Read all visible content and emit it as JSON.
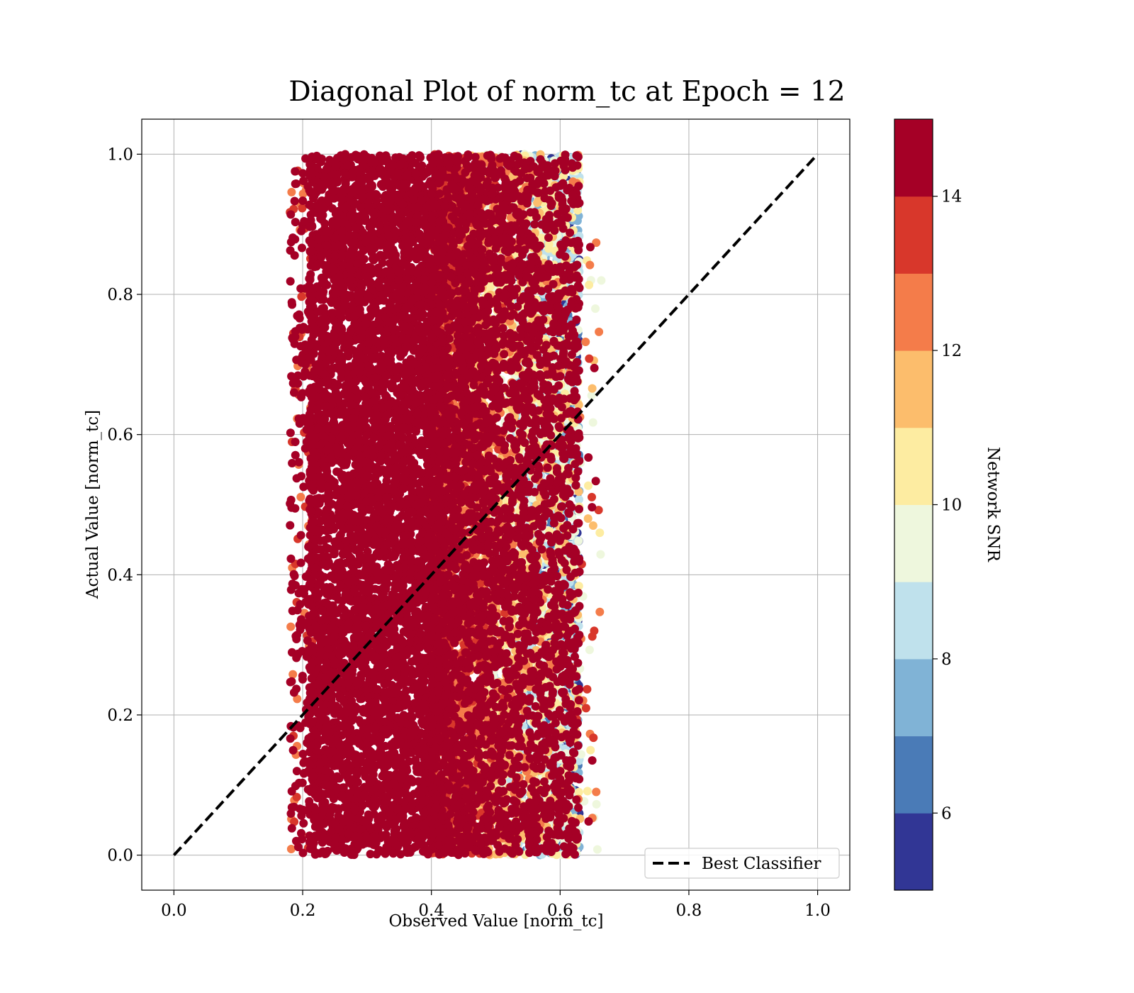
{
  "chart_data": {
    "type": "scatter",
    "title": "Diagonal Plot of norm_tc at Epoch = 12",
    "xlabel": "Observed Value [norm_tc]",
    "ylabel": "Actual Value [norm_tc]",
    "xlim": [
      -0.05,
      1.05
    ],
    "ylim": [
      -0.05,
      1.05
    ],
    "x_ticks": [
      0.0,
      0.2,
      0.4,
      0.6,
      0.8,
      1.0
    ],
    "y_ticks": [
      0.0,
      0.2,
      0.4,
      0.6,
      0.8,
      1.0
    ],
    "x_tick_labels": [
      "0.0",
      "0.2",
      "0.4",
      "0.6",
      "0.8",
      "1.0"
    ],
    "y_tick_labels": [
      "0.0",
      "0.2",
      "0.4",
      "0.6",
      "0.8",
      "1.0"
    ],
    "grid": true,
    "legend": {
      "placement": "lower-right",
      "entries": [
        "Best Classifier"
      ]
    },
    "reference_line": {
      "name": "Best Classifier",
      "style": "dashed",
      "color": "#000000",
      "x": [
        0.0,
        1.0
      ],
      "y": [
        0.0,
        1.0
      ]
    },
    "points": {
      "color_variable": "Network SNR",
      "observed_range": [
        0.18,
        0.67
      ],
      "actual_range": [
        0.0,
        1.0
      ],
      "dense_core_observed_range": [
        0.21,
        0.4
      ],
      "dense_core_snr": 15,
      "mixed_region_observed_range": [
        0.4,
        0.63
      ],
      "low_snr_region_observed_range": [
        0.52,
        0.63
      ],
      "approximate_count": 20000
    },
    "colorbar": {
      "label": "Network SNR",
      "range": [
        5,
        15
      ],
      "ticks": [
        6,
        8,
        10,
        12,
        14
      ],
      "tick_labels": [
        "6",
        "8",
        "10",
        "12",
        "14"
      ],
      "levels": [
        {
          "min": 5,
          "max": 6,
          "color": "#313695"
        },
        {
          "min": 6,
          "max": 7,
          "color": "#4a7bb7"
        },
        {
          "min": 7,
          "max": 8,
          "color": "#80b3d6"
        },
        {
          "min": 8,
          "max": 9,
          "color": "#bfe1ec"
        },
        {
          "min": 9,
          "max": 10,
          "color": "#eef7dd"
        },
        {
          "min": 10,
          "max": 11,
          "color": "#fdeca1"
        },
        {
          "min": 11,
          "max": 12,
          "color": "#fcbd6c"
        },
        {
          "min": 12,
          "max": 13,
          "color": "#f47c4a"
        },
        {
          "min": 13,
          "max": 14,
          "color": "#d8372b"
        },
        {
          "min": 14,
          "max": 15,
          "color": "#a50026"
        }
      ]
    }
  }
}
